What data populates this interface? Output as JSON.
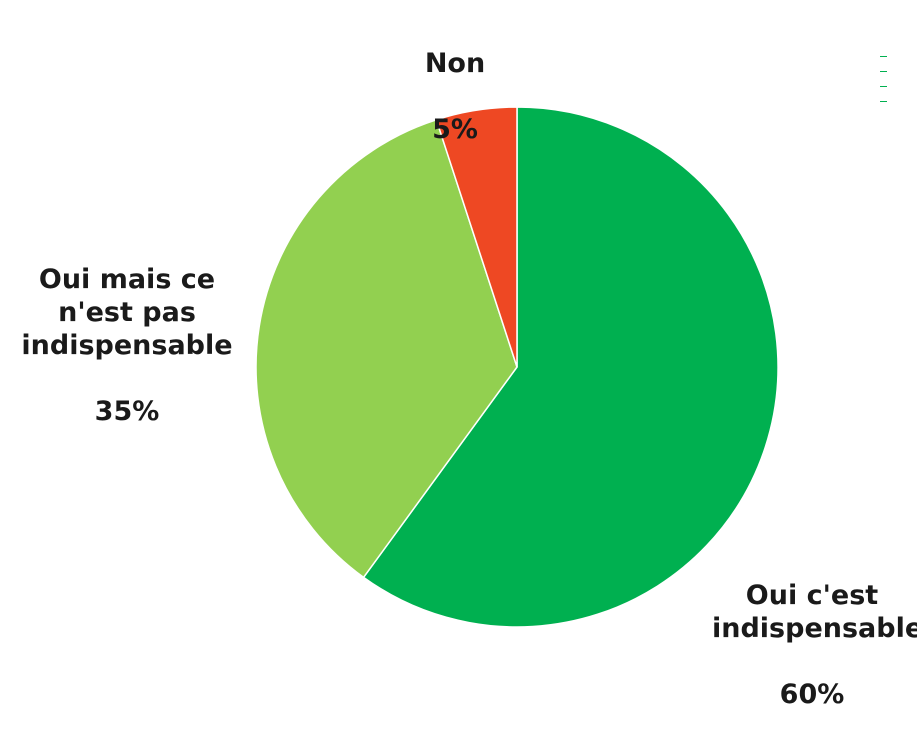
{
  "chart_data": {
    "type": "pie",
    "title": "",
    "slices": [
      {
        "label": "Oui c'est\nindispensable",
        "value": 60,
        "value_text": "60%",
        "color": "#00b050"
      },
      {
        "label": "Oui mais ce\nn'est pas\nindispensable",
        "value": 35,
        "value_text": "35%",
        "color": "#92d050"
      },
      {
        "label": "Non",
        "value": 5,
        "value_text": "5%",
        "color": "#ee4823"
      }
    ],
    "start_angle": "12 o'clock",
    "direction": "clockwise",
    "legend": "none"
  }
}
